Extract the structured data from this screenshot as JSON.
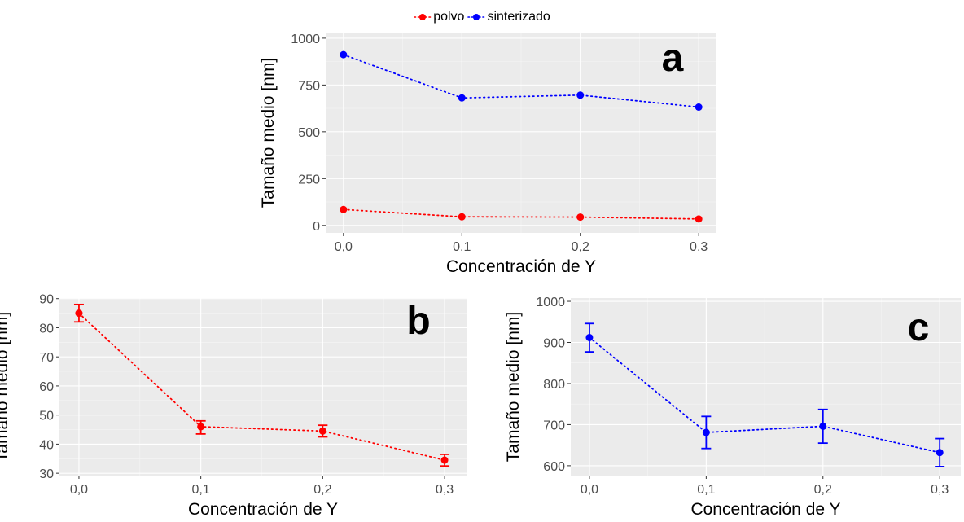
{
  "legend": [
    {
      "name": "polvo",
      "color": "#ff0000"
    },
    {
      "name": "sinterizado",
      "color": "#0000ff"
    }
  ],
  "chart_data": [
    {
      "id": "a",
      "type": "line",
      "panel_label": "a",
      "xlabel": "Concentración de Y",
      "ylabel": "Tamaño medio [nm]",
      "x": [
        0.0,
        0.1,
        0.2,
        0.3
      ],
      "x_tick_labels": [
        "0,0",
        "0,1",
        "0,2",
        "0,3"
      ],
      "xlim": [
        -0.015,
        0.315
      ],
      "ylim": [
        -40,
        1030
      ],
      "y_ticks": [
        0,
        250,
        500,
        750,
        1000
      ],
      "y_tick_labels": [
        "0",
        "250",
        "500",
        "750",
        "1000"
      ],
      "line_style": "dotted",
      "series": [
        {
          "name": "polvo",
          "color": "#ff0000",
          "values": [
            85,
            46,
            44.5,
            34.5
          ]
        },
        {
          "name": "sinterizado",
          "color": "#0000ff",
          "values": [
            912,
            681,
            696,
            632
          ]
        }
      ]
    },
    {
      "id": "b",
      "type": "line",
      "panel_label": "b",
      "xlabel": "Concentración de Y",
      "ylabel": "Tamaño medio [nm]",
      "x": [
        0.0,
        0.1,
        0.2,
        0.3
      ],
      "x_tick_labels": [
        "0,0",
        "0,1",
        "0,2",
        "0,3"
      ],
      "xlim": [
        -0.016,
        0.318
      ],
      "ylim": [
        29.2,
        90.2
      ],
      "y_ticks": [
        30,
        40,
        50,
        60,
        70,
        80,
        90
      ],
      "y_tick_labels": [
        "30",
        "40",
        "50",
        "60",
        "70",
        "80",
        "90"
      ],
      "line_style": "dotted",
      "series": [
        {
          "name": "polvo",
          "color": "#ff0000",
          "values": [
            85,
            46,
            44.5,
            34.5
          ],
          "err_low": [
            82,
            43.5,
            42.5,
            32.5
          ],
          "err_high": [
            88,
            48,
            46.5,
            36.5
          ]
        }
      ]
    },
    {
      "id": "c",
      "type": "line",
      "panel_label": "c",
      "xlabel": "Concentración de Y",
      "ylabel": "Tamaño medio [nm]",
      "x": [
        0.0,
        0.1,
        0.2,
        0.3
      ],
      "x_tick_labels": [
        "0,0",
        "0,1",
        "0,2",
        "0,3"
      ],
      "xlim": [
        -0.016,
        0.318
      ],
      "ylim": [
        576,
        1008
      ],
      "y_ticks": [
        600,
        700,
        800,
        900,
        1000
      ],
      "y_tick_labels": [
        "600",
        "700",
        "800",
        "900",
        "1000"
      ],
      "line_style": "dotted",
      "series": [
        {
          "name": "sinterizado",
          "color": "#0000ff",
          "values": [
            912,
            681,
            696,
            632
          ],
          "err_low": [
            877,
            642,
            655,
            598
          ],
          "err_high": [
            946,
            720,
            737,
            666
          ]
        }
      ]
    }
  ]
}
